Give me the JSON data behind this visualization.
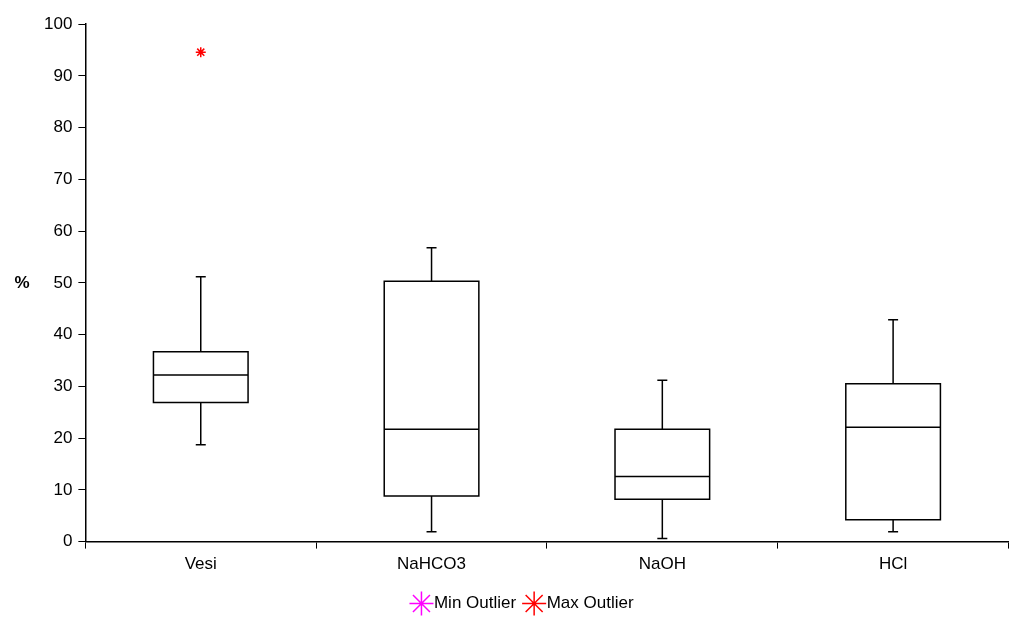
{
  "chart_data": {
    "type": "box",
    "ylabel": "%",
    "categories": [
      "Vesi",
      "NaHCO3",
      "NaOH",
      "HCl"
    ],
    "boxes": [
      {
        "low": 18.7,
        "q1": 26.9,
        "median": 32.2,
        "q3": 36.7,
        "high": 51.2
      },
      {
        "low": 1.9,
        "q1": 8.8,
        "median": 21.7,
        "q3": 50.3,
        "high": 56.8
      },
      {
        "low": 0.6,
        "q1": 8.2,
        "median": 12.6,
        "q3": 21.7,
        "high": 31.2
      },
      {
        "low": 1.9,
        "q1": 4.2,
        "median": 22.1,
        "q3": 30.5,
        "high": 42.9
      }
    ],
    "series": [
      {
        "name": "Min Outlier",
        "type": "scatter",
        "color": "#ff00ff",
        "x": [
          "Vesi",
          "NaHCO3",
          "NaOH",
          "HCl"
        ],
        "values": [
          null,
          null,
          null,
          null
        ]
      },
      {
        "name": "Max Outlier",
        "type": "scatter",
        "color": "#ff0000",
        "x": [
          "Vesi"
        ],
        "values": [
          94.6
        ]
      }
    ],
    "ylim": [
      0,
      100
    ],
    "yticks": [
      0,
      10,
      20,
      30,
      40,
      50,
      60,
      70,
      80,
      90,
      100
    ],
    "grid": false,
    "legend": "bottom",
    "marker": "cross"
  }
}
